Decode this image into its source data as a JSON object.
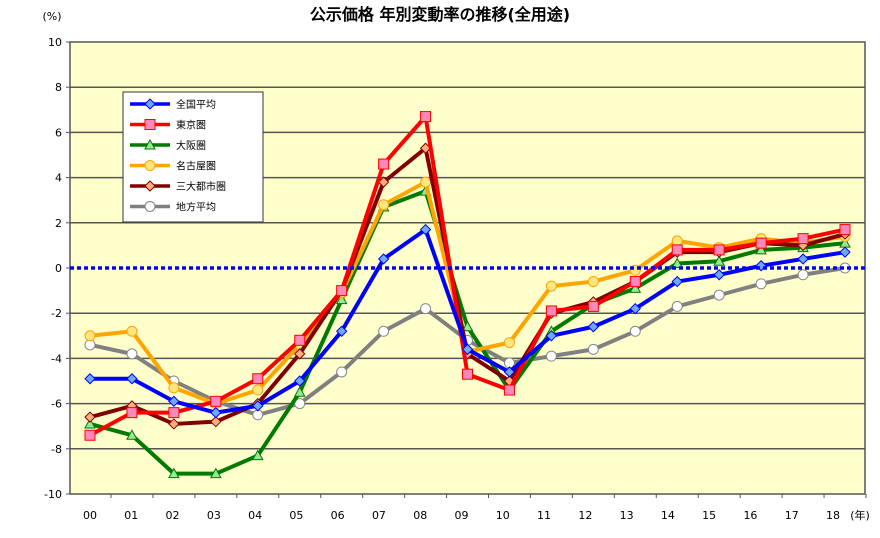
{
  "chart_data": {
    "type": "line",
    "title": "公示価格 年別変動率の推移(全用途)",
    "ylabel": "(%)",
    "xlabel": "(年)",
    "ylim": [
      -10,
      10
    ],
    "yticks": [
      "10",
      "8",
      "6",
      "4",
      "2",
      "0",
      "-2",
      "-4",
      "-6",
      "-8",
      "-10"
    ],
    "ytick_values": [
      10,
      8,
      6,
      4,
      2,
      0,
      -2,
      -4,
      -6,
      -8,
      -10
    ],
    "categories": [
      "00",
      "01",
      "02",
      "03",
      "04",
      "05",
      "06",
      "07",
      "08",
      "09",
      "10",
      "11",
      "12",
      "13",
      "14",
      "15",
      "16",
      "17",
      "18"
    ],
    "grid": true,
    "legend_position": "top-left",
    "series": [
      {
        "name": "全国平均",
        "color": "#0000ff",
        "marker": "diamond",
        "marker_fill": "#6fa8ff",
        "values": [
          -4.9,
          -4.9,
          -5.9,
          -6.4,
          -6.1,
          -5.0,
          -2.8,
          0.4,
          1.7,
          -3.6,
          -4.6,
          -3.0,
          -2.6,
          -1.8,
          -0.6,
          -0.3,
          0.1,
          0.4,
          0.7
        ]
      },
      {
        "name": "東京圏",
        "color": "#ff0000",
        "marker": "square",
        "marker_fill": "#ff88bb",
        "values": [
          -7.4,
          -6.4,
          -6.4,
          -5.9,
          -4.9,
          -3.2,
          -1.0,
          4.6,
          6.7,
          -4.7,
          -5.4,
          -1.9,
          -1.7,
          -0.6,
          0.8,
          0.8,
          1.1,
          1.3,
          1.7
        ]
      },
      {
        "name": "大阪圏",
        "color": "#007a00",
        "marker": "triangle",
        "marker_fill": "#99e699",
        "values": [
          -6.9,
          -7.4,
          -9.1,
          -9.1,
          -8.3,
          -5.5,
          -1.4,
          2.7,
          3.4,
          -2.6,
          -5.4,
          -2.8,
          -1.6,
          -0.9,
          0.2,
          0.3,
          0.8,
          0.9,
          1.1
        ]
      },
      {
        "name": "名古屋圏",
        "color": "#ffa500",
        "marker": "circle",
        "marker_fill": "#ffe680",
        "values": [
          -3.0,
          -2.8,
          -5.3,
          -6.0,
          -5.4,
          -3.4,
          -1.1,
          2.8,
          3.8,
          -3.7,
          -3.3,
          -0.8,
          -0.6,
          -0.1,
          1.2,
          0.9,
          1.3,
          1.1,
          1.4
        ]
      },
      {
        "name": "三大都市圏",
        "color": "#800000",
        "marker": "diamond",
        "marker_fill": "#ffb07a",
        "values": [
          -6.6,
          -6.1,
          -6.9,
          -6.8,
          -6.0,
          -3.8,
          -1.0,
          3.8,
          5.3,
          -3.8,
          -5.0,
          -2.0,
          -1.5,
          -0.6,
          0.7,
          0.7,
          1.1,
          1.0,
          1.5
        ]
      },
      {
        "name": "地方平均",
        "color": "#808080",
        "marker": "circle",
        "marker_fill": "#ffffff",
        "values": [
          -3.4,
          -3.8,
          -5.0,
          -5.9,
          -6.5,
          -6.0,
          -4.6,
          -2.8,
          -1.8,
          -3.2,
          -4.2,
          -3.9,
          -3.6,
          -2.8,
          -1.7,
          -1.2,
          -0.7,
          -0.3,
          0.0
        ]
      }
    ],
    "zero_line_color": "#0000ff",
    "plot_background": "#ffffcc"
  }
}
